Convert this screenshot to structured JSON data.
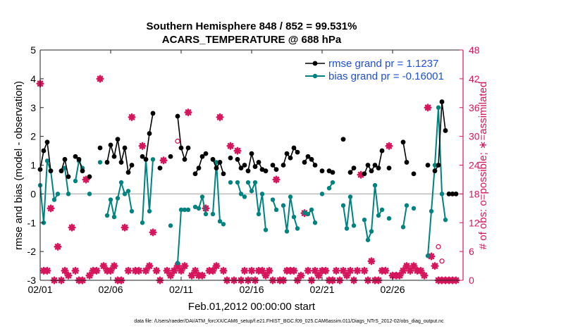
{
  "chart_data": {
    "type": "line",
    "title": "Southern Hemisphere 848 / 852 = 99.531%",
    "subtitle": "ACARS_TEMPERATURE @ 688 hPa",
    "xlabel": "Feb.01,2012 00:00:00 start",
    "ylabel": "rmse and bias (model - observation)",
    "y2label": "# of obs: o=possible; ∗=assimilated",
    "footnote": "data file: /Users/raeder/DAI/ATM_forcXX/CAM6_setup/f.e21.FHIST_BGC.f09_025.CAM6assim.011/Diags_NTrS_2012-02/obs_diag_output.nc",
    "xlim": [
      0,
      30
    ],
    "ylim": [
      -3,
      5
    ],
    "y2lim": [
      0,
      48
    ],
    "x_tick_values": [
      0,
      5,
      10,
      15,
      20,
      25
    ],
    "x_tick_labels": [
      "02/01",
      "02/06",
      "02/11",
      "02/16",
      "02/21",
      "02/26"
    ],
    "y_ticks": [
      -3,
      -2,
      -1,
      0,
      1,
      2,
      3,
      4,
      5
    ],
    "y2_ticks": [
      0,
      6,
      12,
      18,
      24,
      30,
      36,
      42,
      48
    ],
    "colors": {
      "rmse": "#000000",
      "bias": "#00827f",
      "obs": "#d6155c",
      "zero": "#bbbbbb",
      "legend_text": "#1f4fd6"
    },
    "legend_position": "top-right",
    "grid": false,
    "series": [
      {
        "name": "rmse grand pr = 1.1237",
        "x": [
          0,
          0.25,
          0.5,
          0.75,
          null,
          1.5,
          1.75,
          2.0,
          null,
          2.5,
          2.75,
          3.0,
          null,
          3.5,
          null,
          4.25,
          null,
          4.75,
          5.0,
          5.25,
          5.5,
          5.75,
          6.0,
          6.25,
          6.5,
          null,
          7.25,
          7.5,
          7.75,
          8.0,
          null,
          8.5,
          null,
          9.25,
          null,
          9.75,
          10.0,
          10.25,
          10.5,
          null,
          11.0,
          11.25,
          11.5,
          11.75,
          null,
          12.25,
          12.5,
          12.75,
          13.0,
          null,
          13.5,
          null,
          14.0,
          14.25,
          14.5,
          null,
          14.75,
          15.0,
          15.25,
          15.5,
          15.75,
          16.0,
          null,
          16.5,
          16.75,
          null,
          17.25,
          17.5,
          17.75,
          18.0,
          18.25,
          null,
          18.75,
          19.0,
          19.25,
          19.5,
          null,
          20.0,
          null,
          20.5,
          20.75,
          null,
          21.5,
          null,
          22.0,
          22.25,
          null,
          23.0,
          23.25,
          23.5,
          23.75,
          24.0,
          24.25,
          null,
          24.75,
          null,
          25.75,
          26.0,
          null,
          26.5,
          null,
          27.5,
          null,
          28.0,
          28.25,
          28.5,
          28.75,
          null,
          29.0,
          29.25,
          29.5
        ],
        "values": [
          0.85,
          1.5,
          1.8,
          0.8,
          null,
          0.8,
          1.2,
          0.6,
          null,
          1.3,
          1.2,
          0.8,
          null,
          0.6,
          null,
          1.6,
          null,
          1.1,
          1.7,
          1.3,
          1.9,
          1.1,
          1.6,
          0.75,
          1.0,
          null,
          1.3,
          1.2,
          2.1,
          2.8,
          null,
          0.9,
          null,
          1.3,
          null,
          2.7,
          1.6,
          1.2,
          1.6,
          null,
          0.7,
          0.9,
          1.3,
          1.4,
          null,
          1.2,
          0.9,
          1.1,
          0.7,
          null,
          1.25,
          null,
          1.2,
          0.9,
          1.0,
          null,
          0.8,
          1.4,
          0.95,
          1.1,
          0.85,
          0.8,
          null,
          1.0,
          0.85,
          null,
          1.0,
          1.4,
          1.25,
          1.6,
          1.45,
          null,
          1.1,
          1.3,
          1.2,
          1.0,
          null,
          0.8,
          null,
          0.8,
          0.75,
          null,
          1.9,
          null,
          0.75,
          0.9,
          null,
          0.7,
          1.0,
          0.8,
          1.0,
          0.9,
          1.5,
          null,
          0.9,
          null,
          1.8,
          1.1,
          null,
          0.7,
          null,
          1.0,
          null,
          0.8,
          1.0,
          3.2,
          2.2,
          null,
          0.0,
          0.0,
          0.0
        ]
      },
      {
        "name": "bias grand pr = -0.16001",
        "x": [
          0,
          0.25,
          0.5,
          0.75,
          1.0,
          1.25,
          null,
          1.75,
          2.0,
          null,
          2.5,
          2.75,
          3.0,
          null,
          3.5,
          null,
          4.25,
          null,
          4.75,
          5.0,
          5.25,
          5.5,
          5.75,
          6.0,
          6.25,
          6.5,
          null,
          7.25,
          7.5,
          7.75,
          8.0,
          null,
          8.5,
          null,
          9.25,
          null,
          9.75,
          10.0,
          10.25,
          10.5,
          null,
          11.0,
          11.25,
          11.5,
          11.75,
          null,
          12.25,
          12.5,
          12.75,
          13.0,
          null,
          13.5,
          null,
          14.0,
          14.25,
          14.5,
          null,
          14.75,
          15.0,
          15.25,
          15.5,
          15.75,
          16.0,
          null,
          16.5,
          16.75,
          null,
          17.25,
          17.5,
          17.75,
          18.0,
          18.25,
          null,
          18.75,
          19.0,
          19.25,
          19.5,
          null,
          20.0,
          null,
          20.5,
          20.75,
          null,
          21.5,
          21.75,
          22.0,
          22.25,
          null,
          23.0,
          23.25,
          23.5,
          23.75,
          24.0,
          24.25,
          null,
          24.75,
          null,
          25.75,
          26.0,
          null,
          26.5,
          null,
          27.5,
          27.75,
          28.0,
          28.25,
          28.5,
          28.75,
          null,
          29.0,
          29.25,
          29.5
        ],
        "values": [
          0.3,
          -1.0,
          1.15,
          0.8,
          -0.2,
          0.0,
          null,
          0.9,
          0.0,
          null,
          0.45,
          1.15,
          0.9,
          null,
          0.0,
          null,
          1.1,
          null,
          -0.75,
          -0.2,
          -0.8,
          -0.15,
          0.4,
          0.0,
          0.1,
          -0.6,
          null,
          -1.0,
          1.2,
          -0.6,
          1.2,
          null,
          0.9,
          null,
          -1.1,
          null,
          -2.4,
          -0.55,
          -0.55,
          -0.55,
          null,
          -0.45,
          -0.5,
          -0.1,
          -0.7,
          null,
          -0.7,
          1.1,
          -0.95,
          -1.05,
          null,
          0.4,
          null,
          0.4,
          0.0,
          -0.1,
          null,
          0.4,
          0.1,
          0.4,
          -0.7,
          0.0,
          -1.25,
          null,
          -0.2,
          -0.55,
          null,
          -0.4,
          -1.3,
          -0.1,
          -0.8,
          -1.2,
          null,
          -0.65,
          -0.7,
          -0.55,
          -1.0,
          null,
          0.0,
          null,
          0.2,
          0.4,
          null,
          -0.4,
          -1.2,
          -0.1,
          -1.1,
          null,
          -0.9,
          -1.6,
          -1.3,
          0.3,
          -0.75,
          -0.55,
          null,
          -0.85,
          null,
          -1.15,
          -0.4,
          null,
          -0.5,
          null,
          -2.15,
          -0.6,
          1.0,
          3.0,
          0.0,
          -0.9,
          null,
          0.0,
          0.0,
          0.0
        ]
      },
      {
        "name": "obs possible",
        "marker": "o",
        "x": [
          9.75,
          28.25,
          28.5
        ],
        "values": [
          29,
          7,
          4
        ]
      },
      {
        "name": "obs assimilated",
        "marker": "*",
        "x": [
          0,
          0.25,
          0.5,
          0.75,
          1.0,
          1.25,
          1.5,
          1.75,
          2.0,
          2.25,
          2.5,
          2.75,
          3.0,
          3.25,
          3.5,
          3.75,
          4.0,
          4.25,
          4.5,
          4.75,
          5.0,
          5.25,
          5.5,
          5.75,
          6.0,
          6.25,
          6.5,
          6.75,
          7.0,
          7.25,
          7.5,
          7.75,
          8.0,
          8.25,
          8.5,
          8.75,
          9.0,
          9.25,
          9.5,
          9.75,
          10.0,
          10.25,
          10.5,
          10.75,
          11.0,
          11.25,
          11.5,
          11.75,
          12.0,
          12.25,
          12.5,
          12.75,
          13.0,
          13.25,
          13.5,
          13.75,
          14.0,
          14.25,
          14.5,
          14.75,
          15.0,
          15.25,
          15.5,
          15.75,
          16.0,
          16.25,
          16.5,
          16.75,
          17.0,
          17.25,
          17.5,
          17.75,
          18.0,
          18.25,
          18.5,
          18.75,
          19.0,
          19.25,
          19.5,
          19.75,
          20.0,
          20.25,
          20.5,
          20.75,
          21.0,
          21.25,
          21.5,
          21.75,
          22.0,
          22.25,
          22.5,
          22.75,
          23.0,
          23.25,
          23.5,
          23.75,
          24.0,
          24.25,
          24.5,
          24.75,
          25.0,
          25.25,
          25.5,
          25.75,
          26.0,
          26.25,
          26.5,
          26.75,
          27.0,
          27.25,
          27.5,
          27.75,
          28.0,
          28.25,
          28.5,
          28.75,
          29.0,
          29.25,
          29.5
        ],
        "values": [
          41,
          2,
          2,
          15,
          0,
          7,
          0,
          2,
          1,
          11,
          2,
          0,
          0,
          21,
          1,
          2,
          2,
          42,
          3,
          2,
          2,
          3,
          0,
          0,
          11,
          2,
          34,
          2,
          2,
          28,
          2,
          3,
          10,
          2,
          0,
          25,
          2,
          1,
          2,
          3,
          2,
          3,
          35,
          1,
          2,
          1,
          1,
          15,
          2,
          2,
          3,
          34,
          2,
          0,
          28,
          0,
          27,
          0,
          2,
          0,
          2,
          0,
          2,
          2,
          1,
          2,
          0,
          21,
          0,
          0,
          2,
          2,
          2,
          0,
          1,
          14,
          2,
          0,
          2,
          1,
          2,
          2,
          0,
          0,
          2,
          0,
          2,
          1,
          2,
          0,
          2,
          22,
          2,
          0,
          4,
          0,
          0,
          2,
          2,
          28,
          1,
          1,
          1,
          2,
          3,
          2,
          3,
          2,
          2,
          1,
          36,
          5,
          3,
          0,
          0,
          0,
          0,
          0,
          0
        ]
      }
    ]
  }
}
